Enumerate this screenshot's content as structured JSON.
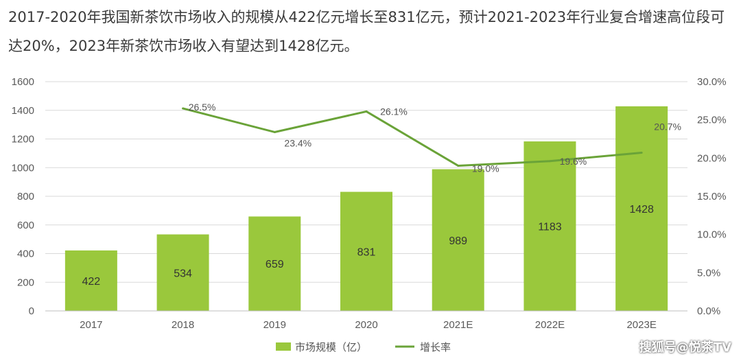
{
  "headline": "2017-2020年我国新茶饮市场收入的规模从422亿元增长至831亿元，预计2021-2023年行业复合增速高位段可达20%，2023年新茶饮市场收入有望达到1428亿元。",
  "watermark": "搜狐号@悦茶TV",
  "colors": {
    "bar": "#9ac83c",
    "line": "#6aa338",
    "grid": "#d9d9d9"
  },
  "chart_data": {
    "type": "bar",
    "categories": [
      "2017",
      "2018",
      "2019",
      "2020",
      "2021E",
      "2022E",
      "2023E"
    ],
    "series": [
      {
        "name": "市场规模（亿）",
        "type": "bar",
        "axis": "left",
        "values": [
          422,
          534,
          659,
          831,
          989,
          1183,
          1428
        ],
        "labels": [
          "422",
          "534",
          "659",
          "831",
          "989",
          "1183",
          "1428"
        ]
      },
      {
        "name": "增长率",
        "type": "line",
        "axis": "right",
        "values": [
          null,
          26.5,
          23.4,
          26.1,
          19.0,
          19.6,
          20.7
        ],
        "labels": [
          "",
          "26.5%",
          "23.4%",
          "26.1%",
          "19.0%",
          "19.6%",
          "20.7%"
        ]
      }
    ],
    "y_left": {
      "ylim": [
        0,
        1600
      ],
      "ticks": [
        "0",
        "200",
        "400",
        "600",
        "800",
        "1000",
        "1200",
        "1400",
        "1600"
      ]
    },
    "y_right": {
      "ylim": [
        0,
        30
      ],
      "ticks": [
        "0.0%",
        "5.0%",
        "10.0%",
        "15.0%",
        "20.0%",
        "25.0%",
        "30.0%"
      ]
    },
    "grid": true,
    "legend_position": "bottom"
  }
}
